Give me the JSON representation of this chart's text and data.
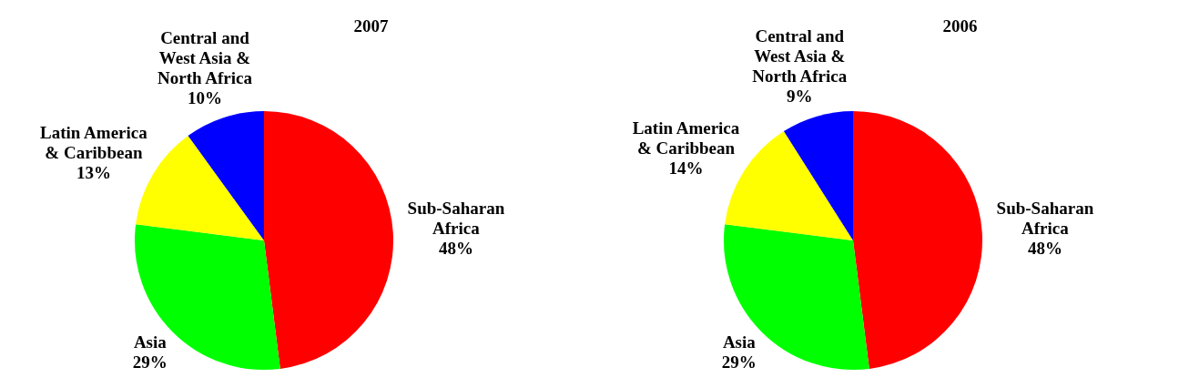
{
  "chart_data": [
    {
      "type": "pie",
      "title": "2007",
      "categories": [
        "Sub-Saharan Africa",
        "Asia",
        "Latin America & Caribbean",
        "Central and West Asia & North Africa"
      ],
      "values": [
        48,
        29,
        13,
        10
      ],
      "value_labels": [
        "48%",
        "29%",
        "13%",
        "10%"
      ],
      "colors": [
        "#ff0000",
        "#00ff00",
        "#ffff00",
        "#0000ff"
      ],
      "legend": false
    },
    {
      "type": "pie",
      "title": "2006",
      "categories": [
        "Sub-Saharan Africa",
        "Asia",
        "Latin America & Caribbean",
        "Central and West Asia & North Africa"
      ],
      "values": [
        48,
        29,
        14,
        9
      ],
      "value_labels": [
        "48%",
        "29%",
        "14%",
        "9%"
      ],
      "colors": [
        "#ff0000",
        "#00ff00",
        "#ffff00",
        "#0000ff"
      ],
      "legend": false
    }
  ]
}
